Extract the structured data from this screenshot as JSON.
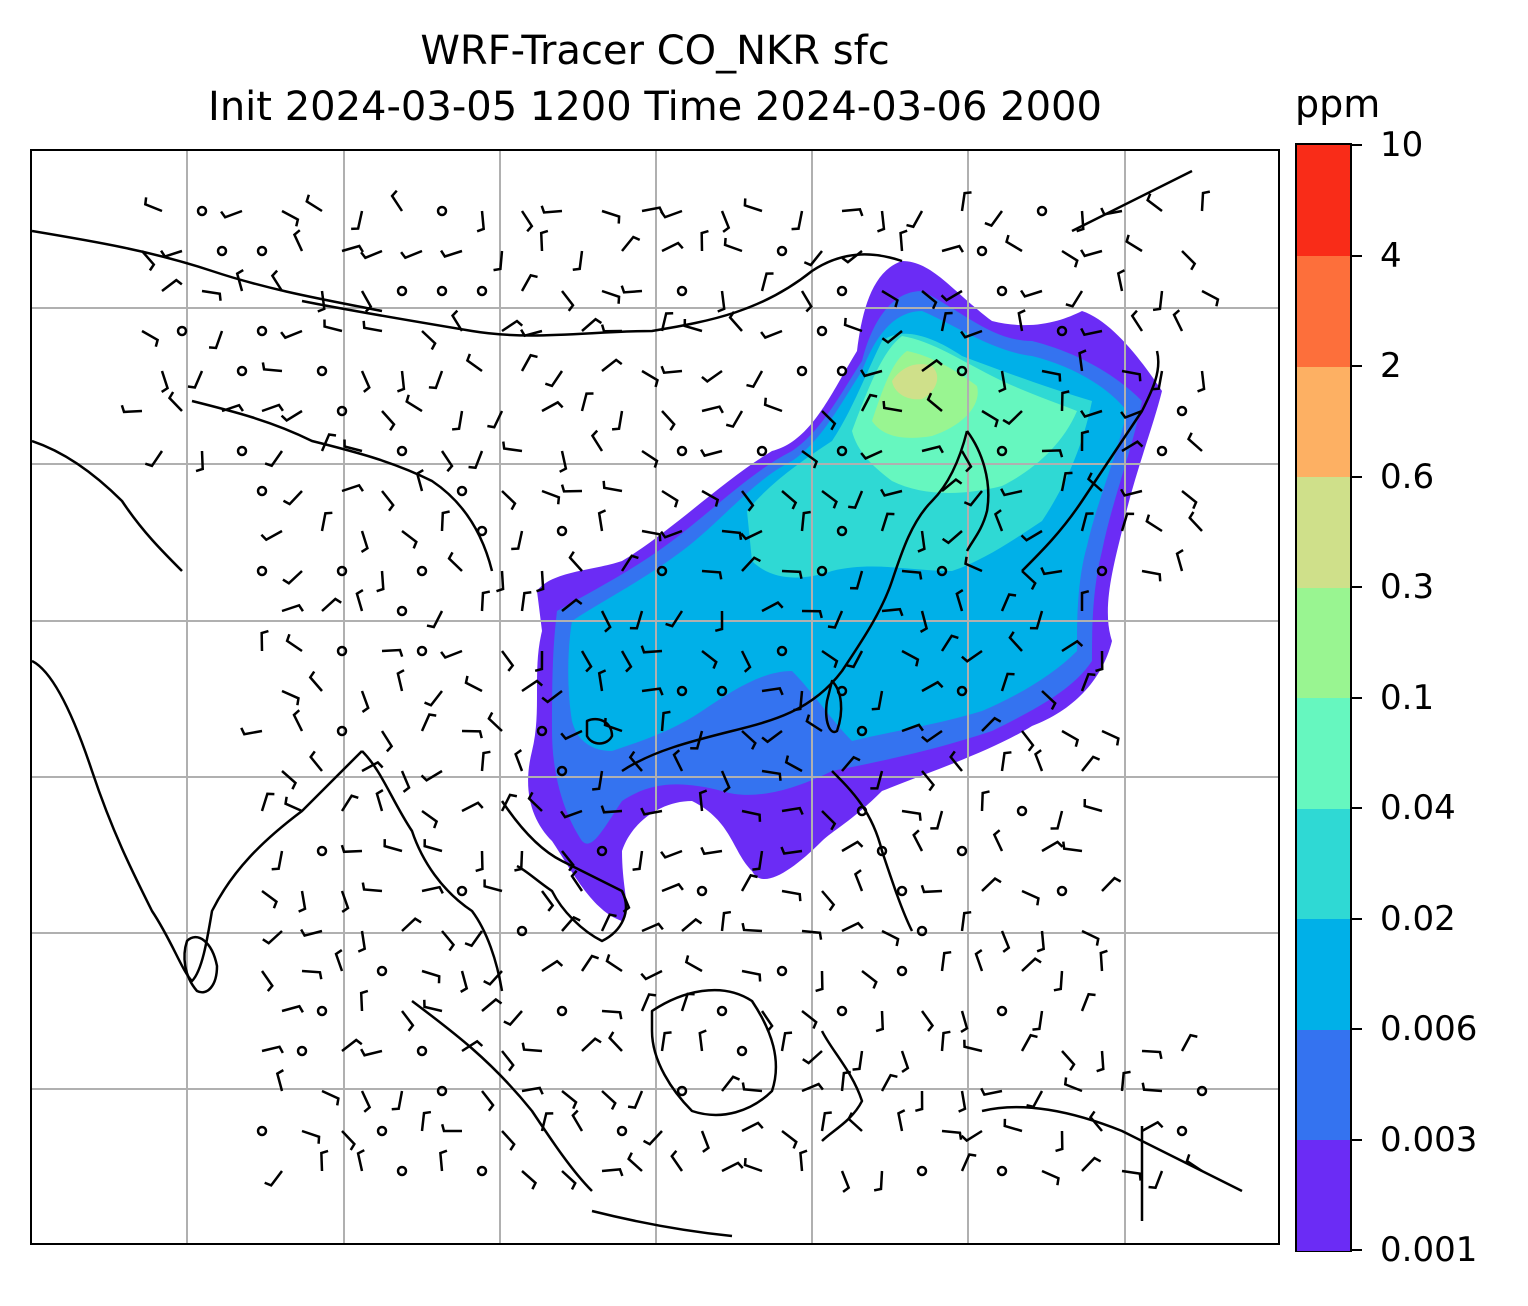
{
  "title": {
    "line1": "WRF-Tracer CO_NKR sfc",
    "line2": "Init 2024-03-05 1200 Time 2024-03-06 2000"
  },
  "colorbar": {
    "unit": "ppm",
    "ticks": [
      "10",
      "4",
      "2",
      "0.6",
      "0.3",
      "0.1",
      "0.04",
      "0.02",
      "0.006",
      "0.003",
      "0.001"
    ],
    "colors": [
      "#6b2cf5",
      "#3473f0",
      "#00b0e8",
      "#2fd9d4",
      "#66f7bf",
      "#99f591",
      "#cfe08a",
      "#fdb063",
      "#fd6f3b",
      "#f92c18"
    ]
  },
  "map": {
    "gridline_color": "#b0b0b0",
    "coastline_color": "#000000",
    "wind_barbs": "present",
    "grid": true
  }
}
